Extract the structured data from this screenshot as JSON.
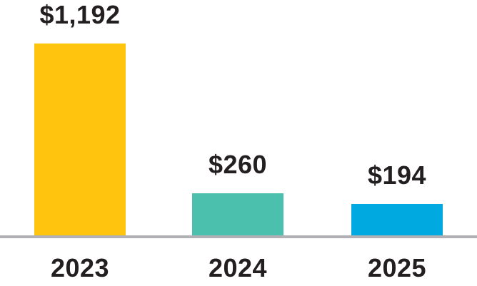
{
  "chart_data": {
    "type": "bar",
    "categories": [
      "2023",
      "2024",
      "2025"
    ],
    "values": [
      1192,
      260,
      194
    ],
    "value_labels": [
      "$1,192",
      "$260",
      "$194"
    ],
    "bar_colors": [
      "#FFC40D",
      "#4BC0AC",
      "#00A9E0"
    ],
    "title": "",
    "xlabel": "",
    "ylabel": "",
    "ylim": [
      0,
      1250
    ],
    "grid": false,
    "legend": false,
    "baseline_visible": true
  },
  "colors": {
    "axis_line": "#B1B1B5",
    "label_text": "#231F20",
    "background": "#FFFFFF"
  }
}
